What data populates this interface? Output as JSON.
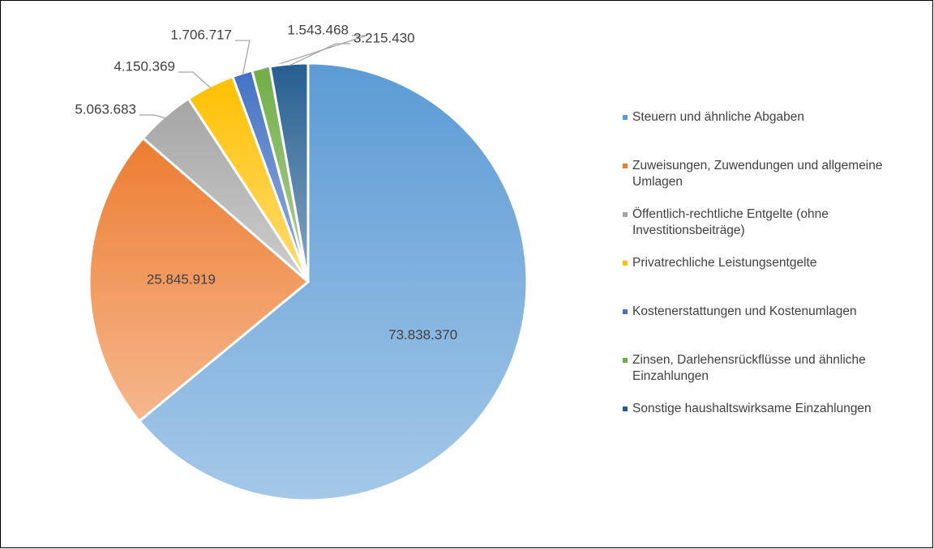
{
  "chart_data": {
    "type": "pie",
    "categories": [
      "Steuern und ähnliche Abgaben",
      "Zuweisungen, Zuwendungen und allgemeine Umlagen",
      "Öffentlich-rechtliche Entgelte (ohne Investitionsbeiträge)",
      "Privatrechliche Leistungsentgelte",
      "Kostenerstattungen und Kostenumlagen",
      "Zinsen, Darlehensrückflüsse und ähnliche Einzahlungen",
      "Sonstige haushaltswirksame Einzahlungen"
    ],
    "values": [
      73838370,
      25845919,
      5063683,
      4150369,
      1706717,
      1543468,
      3215430
    ],
    "value_labels": [
      "73.838.370",
      "25.845.919",
      "5.063.683",
      "4.150.369",
      "1.706.717",
      "1.543.468",
      "3.215.430"
    ],
    "colors": [
      "#5b9bd5",
      "#ed7d31",
      "#a5a5a5",
      "#ffc000",
      "#4472c4",
      "#70ad47",
      "#255e91"
    ],
    "legend": "right"
  }
}
